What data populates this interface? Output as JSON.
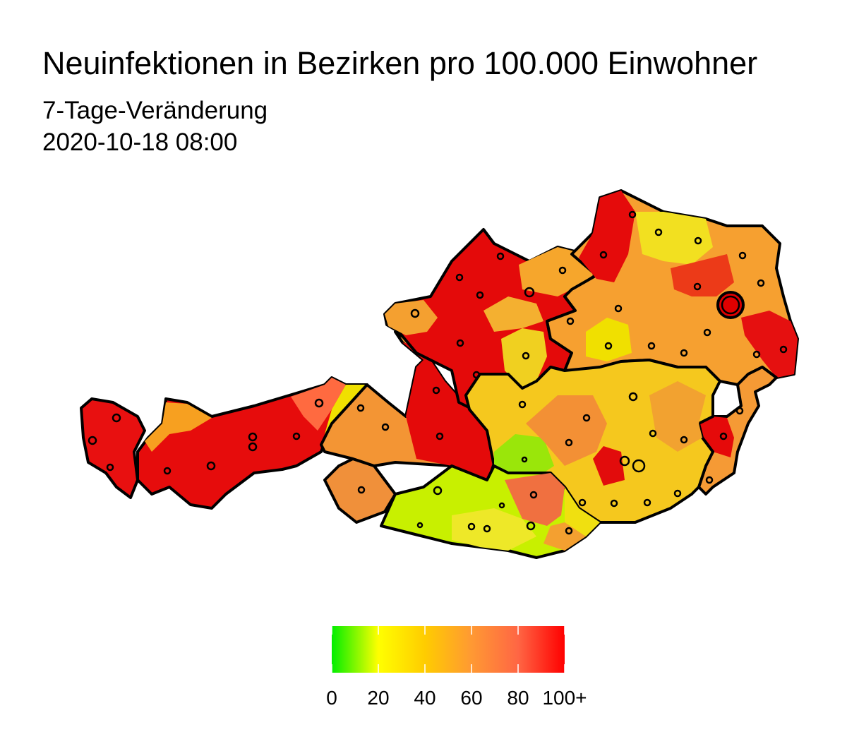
{
  "header": {
    "title": "Neuinfektionen in Bezirken pro 100.000 Einwohner",
    "subtitle": "7-Tage-Veränderung",
    "timestamp": "2020-10-18 08:00"
  },
  "legend": {
    "range": [
      0,
      100
    ],
    "ticks": [
      0,
      20,
      40,
      60,
      80,
      {
        "value": 100,
        "label": "100+"
      }
    ],
    "colors": [
      "#00ee00",
      "#ffff00",
      "#ffcc00",
      "#ff9933",
      "#ff6644",
      "#ff0000"
    ]
  }
}
